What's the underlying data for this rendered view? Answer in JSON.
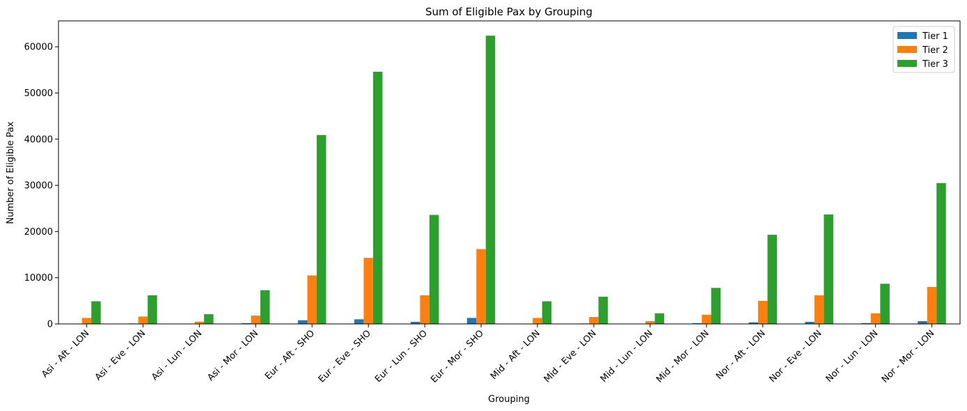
{
  "chart_data": {
    "type": "bar",
    "title": "Sum of Eligible Pax by Grouping",
    "xlabel": "Grouping",
    "ylabel": "Number of Eligible Pax",
    "ylim": [
      0,
      65600
    ],
    "yticks": [
      0,
      10000,
      20000,
      30000,
      40000,
      50000,
      60000
    ],
    "grid": false,
    "legend_position": "top-right",
    "categories": [
      "Asi - Aft - LON",
      "Asi - Eve - LON",
      "Asi - Lun - LON",
      "Asi - Mor - LON",
      "Eur - Aft - SHO",
      "Eur - Eve - SHO",
      "Eur - Lun - SHO",
      "Eur - Mor - SHO",
      "Mid - Aft - LON",
      "Mid - Eve - LON",
      "Mid - Lun - LON",
      "Mid - Mor - LON",
      "Nor - Aft - LON",
      "Nor - Eve - LON",
      "Nor - Lun - LON",
      "Nor - Mor - LON"
    ],
    "series": [
      {
        "name": "Tier 1",
        "color": "#1f77b4",
        "values": [
          80,
          100,
          30,
          150,
          800,
          1000,
          450,
          1300,
          80,
          100,
          50,
          150,
          350,
          450,
          180,
          600
        ]
      },
      {
        "name": "Tier 2",
        "color": "#ff7f0e",
        "values": [
          1300,
          1600,
          500,
          1800,
          10500,
          14300,
          6200,
          16200,
          1300,
          1500,
          600,
          2000,
          5000,
          6200,
          2300,
          8000
        ]
      },
      {
        "name": "Tier 3",
        "color": "#2ca02c",
        "values": [
          4900,
          6200,
          2100,
          7300,
          40900,
          54600,
          23600,
          62400,
          4900,
          5900,
          2300,
          7800,
          19300,
          23700,
          8700,
          30500
        ]
      }
    ]
  }
}
